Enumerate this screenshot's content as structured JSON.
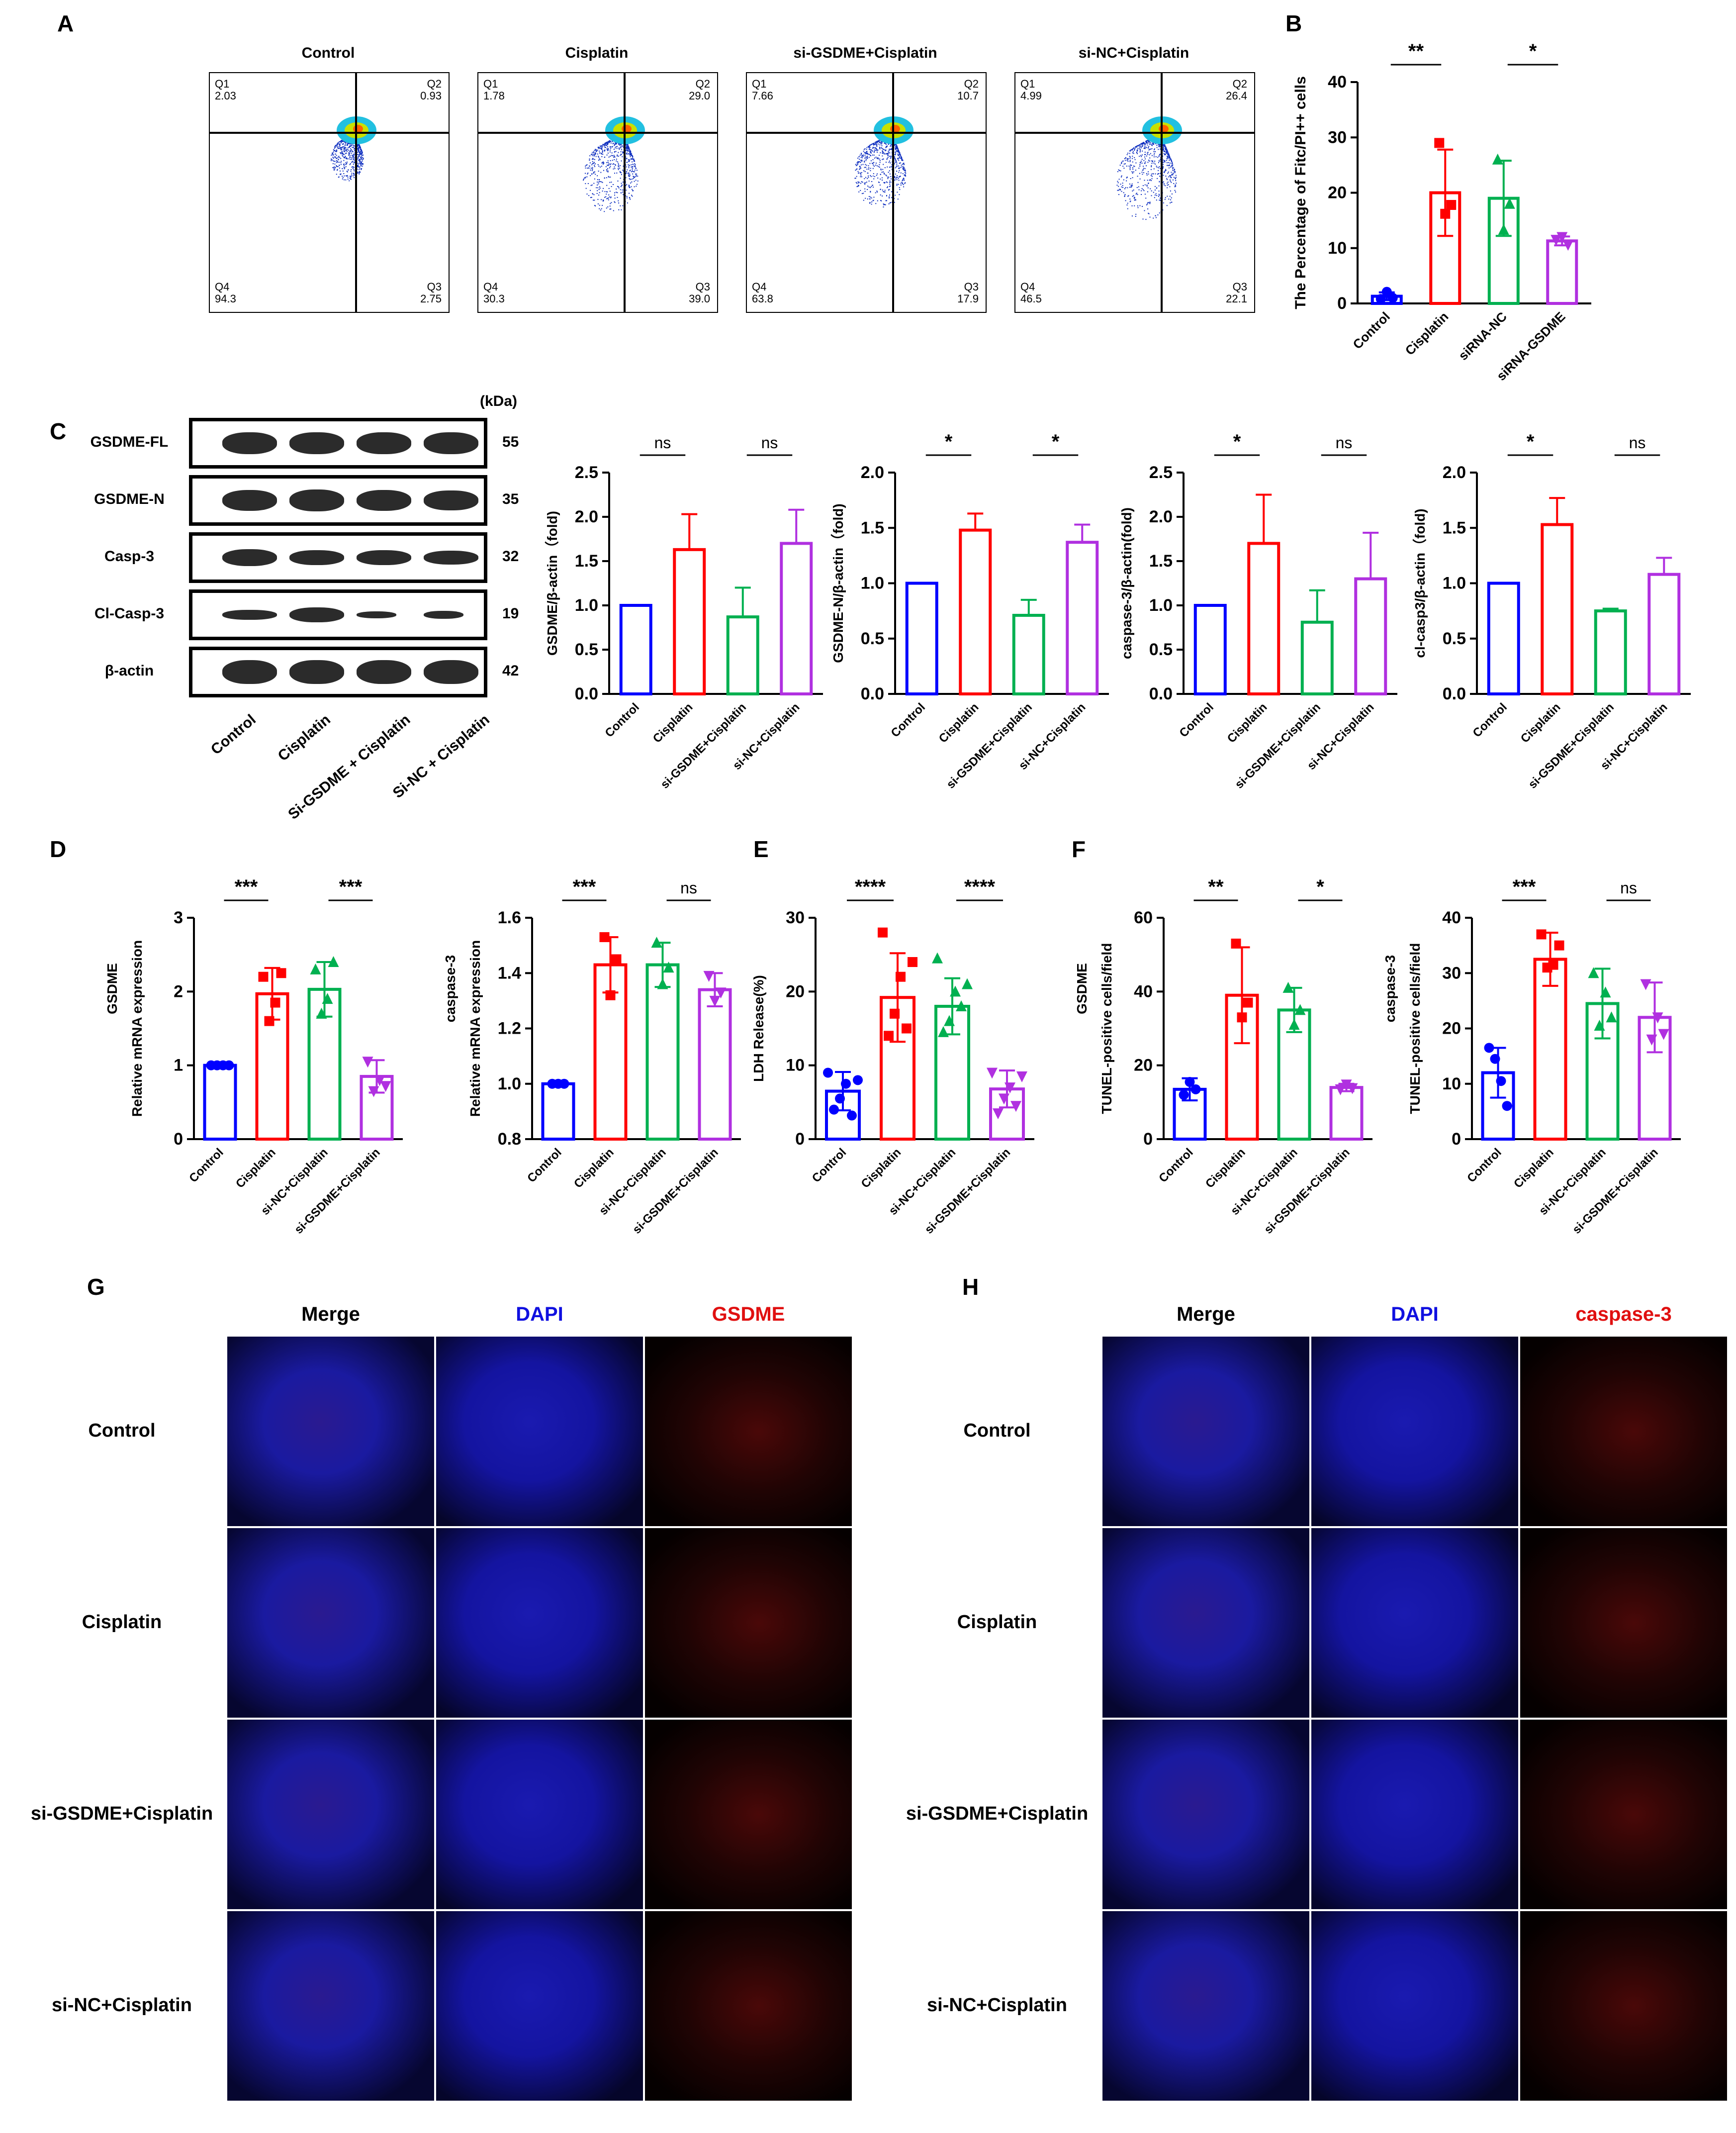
{
  "panels": {
    "A": "A",
    "B": "B",
    "C": "C",
    "D": "D",
    "E": "E",
    "F": "F",
    "G": "G",
    "H": "H"
  },
  "flow": {
    "panels": [
      {
        "title": "Control",
        "q1": "Q1",
        "q1v": "2.03",
        "q2": "Q2",
        "q2v": "0.93",
        "q3": "Q3",
        "q3v": "2.75",
        "q4": "Q4",
        "q4v": "94.3"
      },
      {
        "title": "Cisplatin",
        "q1": "Q1",
        "q1v": "1.78",
        "q2": "Q2",
        "q2v": "29.0",
        "q3": "Q3",
        "q3v": "39.0",
        "q4": "Q4",
        "q4v": "30.3"
      },
      {
        "title": "si-GSDME+Cisplatin",
        "q1": "Q1",
        "q1v": "7.66",
        "q2": "Q2",
        "q2v": "10.7",
        "q3": "Q3",
        "q3v": "17.9",
        "q4": "Q4",
        "q4v": "63.8"
      },
      {
        "title": "si-NC+Cisplatin",
        "q1": "Q1",
        "q1v": "4.99",
        "q2": "Q2",
        "q2v": "26.4",
        "q3": "Q3",
        "q3v": "22.1",
        "q4": "Q4",
        "q4v": "46.5"
      }
    ]
  },
  "western": {
    "kda_header": "(kDa)",
    "rows": [
      {
        "label": "GSDME-FL",
        "kda": "55"
      },
      {
        "label": "GSDME-N",
        "kda": "35"
      },
      {
        "label": "Casp-3",
        "kda": "32"
      },
      {
        "label": "Cl-Casp-3",
        "kda": "19"
      },
      {
        "label": "β-actin",
        "kda": "42"
      }
    ],
    "lanes": [
      "Control",
      "Cisplatin",
      "Si-GSDME + Cisplatin",
      "Si-NC + Cisplatin"
    ]
  },
  "chart_data": [
    {
      "id": "B",
      "type": "bar",
      "ylabel": "The Percentage of Fitc/PI++ cells",
      "ylim": [
        0,
        40
      ],
      "yticks": [
        0,
        10,
        20,
        30,
        40
      ],
      "categories": [
        "Control",
        "Cisplatin",
        "siRNA-NC",
        "siRNA-GSDME"
      ],
      "values": [
        1.3,
        20,
        19,
        11.3
      ],
      "errors": [
        0.7,
        7.8,
        6.8,
        0.8
      ],
      "points": [
        [
          0.8,
          2.1,
          1.0
        ],
        [
          29.0,
          16.2,
          17.8
        ],
        [
          26.0,
          13.3,
          18.0
        ],
        [
          11.5,
          12.0,
          10.6
        ]
      ],
      "sig": [
        {
          "a": 0,
          "b": 1,
          "label": "**"
        },
        {
          "a": 2,
          "b": 3,
          "label": "*"
        }
      ]
    },
    {
      "id": "C1",
      "type": "bar",
      "ylabel": "GSDME/β-actin（fold)",
      "ylim": [
        0,
        2.5
      ],
      "yticks": [
        "0.0",
        "0.5",
        "1.0",
        "1.5",
        "2.0",
        "2.5"
      ],
      "categories": [
        "Control",
        "Cisplatin",
        "si-GSDME+Cisplatin",
        "si-NC+Cisplatin"
      ],
      "values": [
        1.0,
        1.63,
        0.87,
        1.7
      ],
      "errors": [
        0,
        0.4,
        0.33,
        0.38
      ],
      "sig": [
        {
          "a": 0,
          "b": 1,
          "label": "ns"
        },
        {
          "a": 2,
          "b": 3,
          "label": "ns"
        }
      ]
    },
    {
      "id": "C2",
      "type": "bar",
      "ylabel": "GSDME-N/β-actin（fold)",
      "ylim": [
        0,
        2.0
      ],
      "yticks": [
        "0.0",
        "0.5",
        "1.0",
        "1.5",
        "2.0"
      ],
      "categories": [
        "Control",
        "Cisplatin",
        "si-GSDME+Cisplatin",
        "si-NC+Cisplatin"
      ],
      "values": [
        1.0,
        1.48,
        0.71,
        1.37
      ],
      "errors": [
        0,
        0.15,
        0.14,
        0.16
      ],
      "sig": [
        {
          "a": 0,
          "b": 1,
          "label": "*"
        },
        {
          "a": 2,
          "b": 3,
          "label": "*"
        }
      ]
    },
    {
      "id": "C3",
      "type": "bar",
      "ylabel": "caspase-3/β-actin(fold)",
      "ylim": [
        0,
        2.5
      ],
      "yticks": [
        "0.0",
        "0.5",
        "1.0",
        "1.5",
        "2.0",
        "2.5"
      ],
      "categories": [
        "Control",
        "Cisplatin",
        "si-GSDME+Cisplatin",
        "si-NC+Cisplatin"
      ],
      "values": [
        1.0,
        1.7,
        0.81,
        1.3
      ],
      "errors": [
        0,
        0.55,
        0.36,
        0.52
      ],
      "sig": [
        {
          "a": 0,
          "b": 1,
          "label": "*"
        },
        {
          "a": 2,
          "b": 3,
          "label": "ns"
        }
      ]
    },
    {
      "id": "C4",
      "type": "bar",
      "ylabel": "cl-casp3/β-actin（fold)",
      "ylim": [
        0,
        2.0
      ],
      "yticks": [
        "0.0",
        "0.5",
        "1.0",
        "1.5",
        "2.0"
      ],
      "categories": [
        "Control",
        "Cisplatin",
        "si-GSDME+Cisplatin",
        "si-NC+Cisplatin"
      ],
      "values": [
        1.0,
        1.53,
        0.75,
        1.08
      ],
      "errors": [
        0,
        0.24,
        0.02,
        0.15
      ],
      "sig": [
        {
          "a": 0,
          "b": 1,
          "label": "*"
        },
        {
          "a": 2,
          "b": 3,
          "label": "ns"
        }
      ]
    },
    {
      "id": "D1",
      "type": "bar",
      "ylabel": "Relative mRNA expression",
      "group_label": "GSDME",
      "ylim": [
        0,
        3
      ],
      "yticks": [
        0,
        1,
        2,
        3
      ],
      "categories": [
        "Control",
        "Cisplatin",
        "si-NC+Cisplatin",
        "si-GSDME+Cisplatin"
      ],
      "values": [
        1.0,
        1.97,
        2.03,
        0.85
      ],
      "errors": [
        0,
        0.35,
        0.37,
        0.22
      ],
      "points": [
        [
          1,
          1,
          1,
          1
        ],
        [
          2.2,
          1.6,
          1.85,
          2.25
        ],
        [
          2.3,
          1.7,
          1.9,
          2.4
        ],
        [
          1.05,
          0.65,
          0.8,
          0.72
        ]
      ],
      "sig": [
        {
          "a": 0,
          "b": 1,
          "label": "***"
        },
        {
          "a": 2,
          "b": 3,
          "label": "***"
        }
      ]
    },
    {
      "id": "D2",
      "type": "bar",
      "ylabel": "Relative mRNA expression",
      "group_label": "caspase-3",
      "ylim": [
        0.8,
        1.6
      ],
      "yticks": [
        "0.8",
        "1.0",
        "1.2",
        "1.4",
        "1.6"
      ],
      "categories": [
        "Control",
        "Cisplatin",
        "si-NC+Cisplatin",
        "si-GSDME+Cisplatin"
      ],
      "values": [
        1.0,
        1.43,
        1.43,
        1.34
      ],
      "errors": [
        0,
        0.1,
        0.08,
        0.06
      ],
      "points": [
        [
          1,
          1,
          1
        ],
        [
          1.53,
          1.32,
          1.45
        ],
        [
          1.51,
          1.36,
          1.42
        ],
        [
          1.39,
          1.3,
          1.33
        ]
      ],
      "sig": [
        {
          "a": 0,
          "b": 1,
          "label": "***"
        },
        {
          "a": 2,
          "b": 3,
          "label": "ns"
        }
      ]
    },
    {
      "id": "E",
      "type": "bar",
      "ylabel": "LDH Release(%)",
      "ylim": [
        0,
        30
      ],
      "yticks": [
        0,
        10,
        20,
        30
      ],
      "categories": [
        "Control",
        "Cisplatin",
        "si-NC+Cisplatin",
        "si-GSDME+Cisplatin"
      ],
      "values": [
        6.5,
        19.2,
        18.0,
        6.8
      ],
      "errors": [
        2.6,
        6.0,
        3.8,
        2.5
      ],
      "points": [
        [
          9,
          4,
          5.5,
          7.5,
          3.2,
          8
        ],
        [
          28,
          14,
          17,
          22,
          15,
          24
        ],
        [
          24.5,
          14.5,
          16,
          20,
          18,
          21
        ],
        [
          9,
          3.5,
          5.5,
          7,
          4.5,
          8.5
        ]
      ],
      "sig": [
        {
          "a": 0,
          "b": 1,
          "label": "****"
        },
        {
          "a": 2,
          "b": 3,
          "label": "****"
        }
      ]
    },
    {
      "id": "F1",
      "type": "bar",
      "ylabel": "TUNEL-positive cells/field",
      "group_label": "GSDME",
      "ylim": [
        0,
        60
      ],
      "yticks": [
        0,
        20,
        40,
        60
      ],
      "categories": [
        "Control",
        "Cisplatin",
        "si-NC+Cisplatin",
        "si-GSDME+Cisplatin"
      ],
      "values": [
        13.5,
        39,
        35,
        14
      ],
      "errors": [
        3,
        13,
        6,
        1
      ],
      "points": [
        [
          12,
          15.5,
          13.5
        ],
        [
          53,
          33,
          37
        ],
        [
          41,
          31,
          35
        ],
        [
          13.5,
          14.8,
          13.8
        ]
      ],
      "sig": [
        {
          "a": 0,
          "b": 1,
          "label": "**"
        },
        {
          "a": 2,
          "b": 3,
          "label": "*"
        }
      ]
    },
    {
      "id": "F2",
      "type": "bar",
      "ylabel": "TUNEL-positive cells/field",
      "group_label": "caspase-3",
      "ylim": [
        0,
        40
      ],
      "yticks": [
        0,
        10,
        20,
        30,
        40
      ],
      "categories": [
        "Control",
        "Cisplatin",
        "si-NC+Cisplatin",
        "si-GSDME+Cisplatin"
      ],
      "values": [
        12,
        32.5,
        24.5,
        22
      ],
      "errors": [
        4.5,
        4.8,
        6.3,
        6.3
      ],
      "points": [
        [
          16.5,
          14.5,
          10.5,
          6
        ],
        [
          37,
          31,
          31.5,
          35
        ],
        [
          30,
          20.5,
          26.5,
          22
        ],
        [
          28,
          18,
          22,
          19
        ]
      ],
      "sig": [
        {
          "a": 0,
          "b": 1,
          "label": "***"
        },
        {
          "a": 2,
          "b": 3,
          "label": "ns"
        }
      ]
    }
  ],
  "colors": {
    "control": "#0000ff",
    "cisplatin": "#ff0000",
    "green": "#00b050",
    "purple": "#b030e0"
  },
  "if_G": {
    "cols": [
      "Merge",
      "DAPI",
      "GSDME"
    ],
    "rows": [
      "Control",
      "Cisplatin",
      "si-GSDME+Cisplatin",
      "si-NC+Cisplatin"
    ]
  },
  "if_H": {
    "cols": [
      "Merge",
      "DAPI",
      "caspase-3"
    ],
    "rows": [
      "Control",
      "Cisplatin",
      "si-GSDME+Cisplatin",
      "si-NC+Cisplatin"
    ]
  }
}
